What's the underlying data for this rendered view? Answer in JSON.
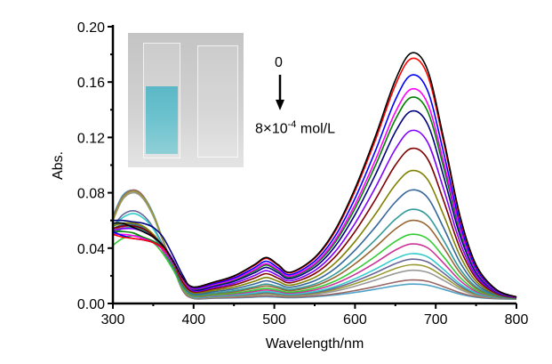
{
  "chart_data": {
    "type": "line",
    "title": "",
    "xlabel": "Wavelength/nm",
    "ylabel": "Abs.",
    "xlim": [
      300,
      800
    ],
    "ylim": [
      0,
      0.2
    ],
    "xticks": [
      "300",
      "400",
      "500",
      "600",
      "700",
      "800"
    ],
    "yticks": [
      "0.00",
      "0.04",
      "0.08",
      "0.12",
      "0.16",
      "0.20"
    ],
    "grid": false,
    "legend": "none",
    "annotation": {
      "start": "0",
      "end_base": "8",
      "times": "×",
      "end_mantissa": "10",
      "end_exponent": "-4",
      "end_unit": "mol/L"
    },
    "uv_x": [
      300,
      312,
      325,
      337,
      350,
      362,
      375,
      387
    ],
    "visible_x": [
      400,
      425,
      450,
      475,
      490,
      505,
      520,
      550,
      575,
      600,
      625,
      650,
      670,
      690,
      710,
      730,
      750,
      775,
      800
    ],
    "visible_profile": [
      0.05,
      0.07,
      0.095,
      0.14,
      0.17,
      0.14,
      0.11,
      0.17,
      0.28,
      0.45,
      0.66,
      0.89,
      1.0,
      0.93,
      0.65,
      0.34,
      0.14,
      0.04,
      0.01
    ],
    "baseline": 0.003,
    "series": [
      {
        "color": "#000000",
        "peak": 0.178,
        "uv": [
          0.058,
          0.058,
          0.055,
          0.052,
          0.048,
          0.042,
          0.03,
          0.018
        ]
      },
      {
        "color": "#ff0000",
        "peak": 0.174,
        "uv": [
          0.05,
          0.048,
          0.047,
          0.046,
          0.044,
          0.04,
          0.03,
          0.018
        ]
      },
      {
        "color": "#0000ff",
        "peak": 0.162,
        "uv": [
          0.052,
          0.049,
          0.047,
          0.046,
          0.044,
          0.04,
          0.03,
          0.018
        ]
      },
      {
        "color": "#ff00ff",
        "peak": 0.152,
        "uv": [
          0.05,
          0.05,
          0.049,
          0.047,
          0.044,
          0.039,
          0.029,
          0.017
        ]
      },
      {
        "color": "#008000",
        "peak": 0.146,
        "uv": [
          0.052,
          0.052,
          0.051,
          0.048,
          0.045,
          0.04,
          0.03,
          0.017
        ]
      },
      {
        "color": "#000080",
        "peak": 0.136,
        "uv": [
          0.06,
          0.06,
          0.059,
          0.058,
          0.055,
          0.048,
          0.034,
          0.02
        ]
      },
      {
        "color": "#8000ff",
        "peak": 0.122,
        "uv": [
          0.053,
          0.054,
          0.054,
          0.052,
          0.048,
          0.042,
          0.031,
          0.017
        ]
      },
      {
        "color": "#800000",
        "peak": 0.109,
        "uv": [
          0.054,
          0.056,
          0.056,
          0.054,
          0.049,
          0.041,
          0.029,
          0.015
        ]
      },
      {
        "color": "#808000",
        "peak": 0.093,
        "uv": [
          0.056,
          0.058,
          0.058,
          0.056,
          0.05,
          0.041,
          0.028,
          0.014
        ]
      },
      {
        "color": "#336699",
        "peak": 0.079,
        "uv": [
          0.054,
          0.057,
          0.057,
          0.055,
          0.049,
          0.04,
          0.027,
          0.013
        ]
      },
      {
        "color": "#339999",
        "peak": 0.065,
        "uv": [
          0.05,
          0.054,
          0.055,
          0.053,
          0.048,
          0.039,
          0.026,
          0.012
        ]
      },
      {
        "color": "#996633",
        "peak": 0.057,
        "uv": [
          0.052,
          0.056,
          0.057,
          0.055,
          0.049,
          0.039,
          0.026,
          0.012
        ]
      },
      {
        "color": "#33cc33",
        "peak": 0.047,
        "uv": [
          0.042,
          0.047,
          0.049,
          0.048,
          0.044,
          0.036,
          0.024,
          0.011
        ]
      },
      {
        "color": "#cc3399",
        "peak": 0.04,
        "uv": [
          0.05,
          0.055,
          0.056,
          0.054,
          0.048,
          0.038,
          0.025,
          0.011
        ]
      },
      {
        "color": "#33cccc",
        "peak": 0.033,
        "uv": [
          0.055,
          0.062,
          0.065,
          0.062,
          0.054,
          0.041,
          0.026,
          0.011
        ]
      },
      {
        "color": "#666699",
        "peak": 0.029,
        "uv": [
          0.055,
          0.064,
          0.067,
          0.064,
          0.055,
          0.042,
          0.026,
          0.011
        ]
      },
      {
        "color": "#999933",
        "peak": 0.025,
        "uv": [
          0.06,
          0.076,
          0.081,
          0.077,
          0.064,
          0.046,
          0.027,
          0.01
        ]
      },
      {
        "color": "#999999",
        "peak": 0.021,
        "uv": [
          0.06,
          0.075,
          0.08,
          0.076,
          0.063,
          0.045,
          0.026,
          0.01
        ]
      },
      {
        "color": "#996666",
        "peak": 0.014,
        "uv": [
          0.062,
          0.077,
          0.082,
          0.078,
          0.064,
          0.046,
          0.026,
          0.009
        ]
      },
      {
        "color": "#4fa3c8",
        "peak": 0.011,
        "uv": [
          0.063,
          0.078,
          0.082,
          0.078,
          0.065,
          0.046,
          0.026,
          0.009
        ]
      }
    ]
  }
}
